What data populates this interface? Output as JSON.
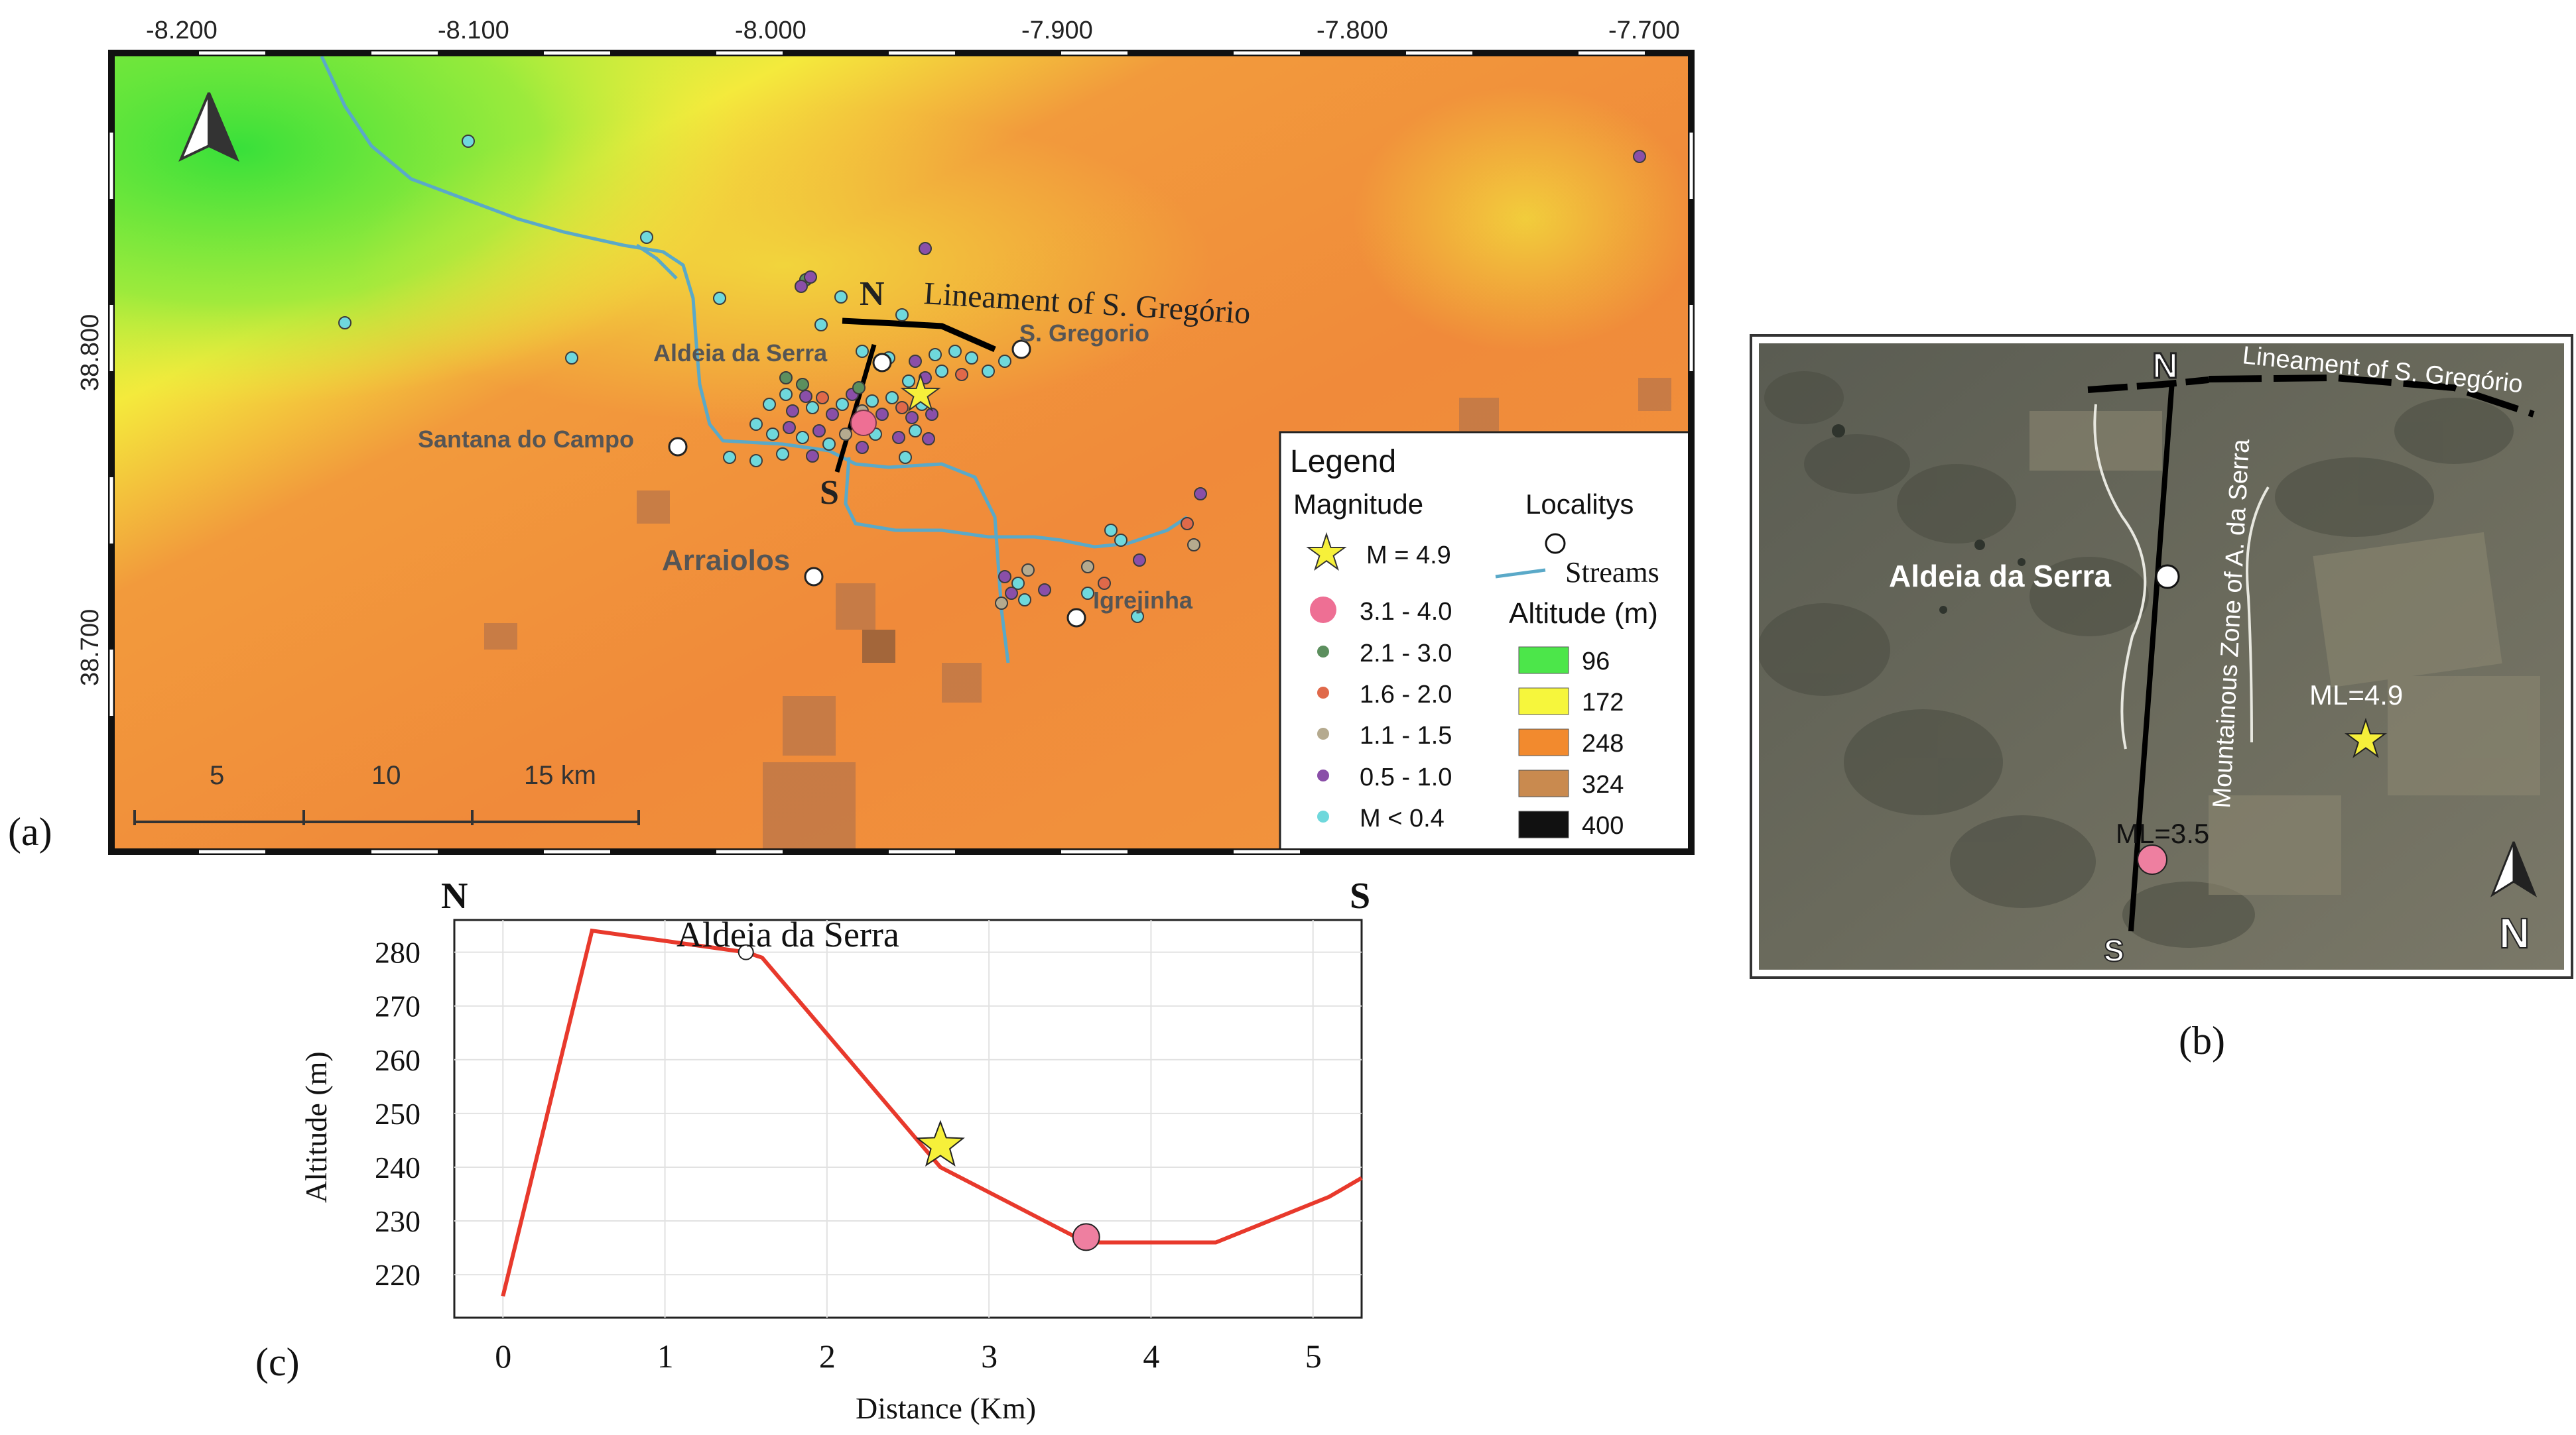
{
  "panels": {
    "a_label": "(a)",
    "b_label": "(b)",
    "c_label": "(c)"
  },
  "map_a": {
    "lon_ticks": [
      "-8.200",
      "-8.100",
      "-8.000",
      "-7.900",
      "-7.800",
      "-7.700"
    ],
    "lat_ticks": [
      "38.800",
      "38.700"
    ],
    "localities": [
      {
        "name": "Aldeia da Serra"
      },
      {
        "name": "S. Gregorio"
      },
      {
        "name": "Santana do Campo"
      },
      {
        "name": "Arraiolos"
      },
      {
        "name": "Igrejinha"
      }
    ],
    "profile_labels": {
      "north": "N",
      "south": "S"
    },
    "lineament_label": "Lineament of S. Gregório",
    "scale_bar": {
      "labels": [
        "5",
        "10",
        "15 km"
      ]
    },
    "altitude_palette": {
      "low": "#3fe43a",
      "mid_low": "#d6ee3c",
      "mid": "#f08a3a",
      "high": "#f28f3b"
    },
    "legend": {
      "title": "Legend",
      "magnitude_heading": "Magnitude",
      "localities_heading": "Localitys",
      "streams_label": "Streams",
      "altitude_heading": "Altitude (m)",
      "magnitudes": [
        {
          "label": "M = 4.9",
          "symbol": "star",
          "color": "#f6f03a"
        },
        {
          "label": "3.1 - 4.0",
          "symbol": "circle",
          "color": "#ee6f94"
        },
        {
          "label": "2.1 - 3.0",
          "symbol": "circle",
          "color": "#5c8f5e"
        },
        {
          "label": "1.6 - 2.0",
          "symbol": "circle",
          "color": "#e0694a"
        },
        {
          "label": "1.1 - 1.5",
          "symbol": "circle",
          "color": "#b5aa8f"
        },
        {
          "label": "0.5 - 1.0",
          "symbol": "circle",
          "color": "#8a4fa8"
        },
        {
          "label": "M < 0.4",
          "symbol": "circle",
          "color": "#6fd8dc"
        }
      ],
      "altitudes": [
        {
          "label": "96",
          "color": "#4ce64a"
        },
        {
          "label": "172",
          "color": "#f6f63c"
        },
        {
          "label": "248",
          "color": "#f28a2e"
        },
        {
          "label": "324",
          "color": "#c98a4f"
        },
        {
          "label": "400",
          "color": "#111111"
        }
      ]
    }
  },
  "map_b": {
    "north_label": "N",
    "south_label": "S",
    "lineament_label": "Lineament of S. Gregório",
    "zone_label": "Mountainous Zone of A. da Serra",
    "locality_label": "Aldeia da Serra",
    "event_large": "ML=4.9",
    "event_small": "ML=3.5",
    "north_arrow_letter": "N"
  },
  "chart_data": {
    "type": "line",
    "title": "",
    "direction_left": "N",
    "direction_right": "S",
    "xlabel": "Distance (Km)",
    "ylabel": "Altitude (m)",
    "x_ticks": [
      "0",
      "1",
      "2",
      "3",
      "4",
      "5"
    ],
    "y_ticks": [
      "220",
      "230",
      "240",
      "250",
      "260",
      "270",
      "280"
    ],
    "xlim": [
      -0.3,
      5.3
    ],
    "ylim": [
      212,
      286
    ],
    "grid": true,
    "series": [
      {
        "color": "#e8392c",
        "x": [
          0,
          0.55,
          1.5,
          1.6,
          2.7,
          3.6,
          3.9,
          4.4,
          5.1,
          5.3
        ],
        "y": [
          216,
          284,
          280,
          279,
          240,
          226,
          226,
          226,
          234.5,
          238
        ]
      }
    ],
    "markers": [
      {
        "label": "Aldeia da Serra",
        "x": 1.5,
        "y": 280,
        "symbol": "circle",
        "color": "#ffffff"
      },
      {
        "x": 2.7,
        "y": 244,
        "symbol": "star",
        "color": "#f6f03a"
      },
      {
        "x": 3.6,
        "y": 227,
        "symbol": "circle",
        "color": "#ee7fa0"
      }
    ]
  }
}
